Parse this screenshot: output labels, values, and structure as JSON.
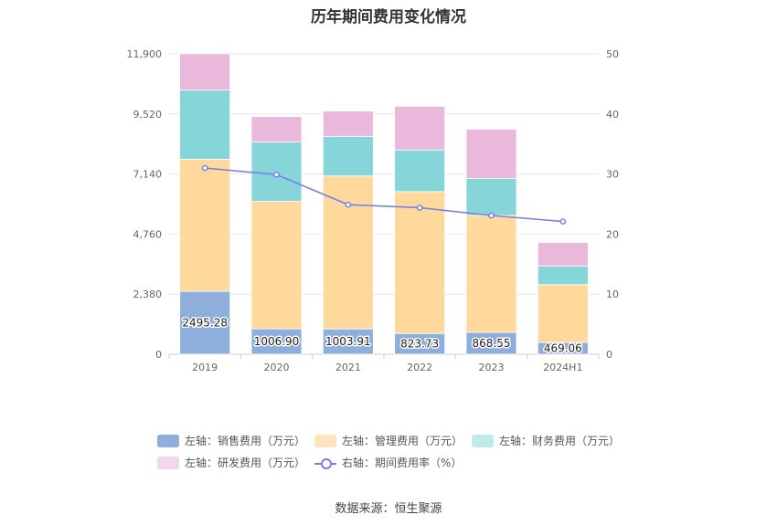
{
  "title": "历年期间费用变化情况",
  "source": "数据来源：恒生聚源",
  "colors": {
    "sales": "#8eaedb",
    "admin": "#ffd99c",
    "finance": "#85d5d9",
    "rd": "#e9b8da",
    "rate": "#7b7fe8",
    "legend_sales": "#8eaedb",
    "legend_admin": "#ffe4be",
    "legend_finance": "#bfeaec",
    "legend_rd": "#f4d6ea"
  },
  "legend": {
    "sales": "左轴：销售费用（万元）",
    "admin": "左轴：管理费用（万元）",
    "finance": "左轴：财务费用（万元）",
    "rd": "左轴：研发费用（万元）",
    "rate": "右轴：期间费用率（%）"
  },
  "chart_data": {
    "type": "bar",
    "stacked": true,
    "categories": [
      "2019",
      "2020",
      "2021",
      "2022",
      "2023",
      "2024H1"
    ],
    "series": [
      {
        "name": "左轴：销售费用（万元）",
        "key": "sales",
        "values": [
          2495.28,
          1006.9,
          1003.91,
          823.73,
          868.55,
          469.06
        ]
      },
      {
        "name": "左轴：管理费用（万元）",
        "key": "admin",
        "values": [
          5230,
          5050,
          6060,
          5620,
          4630,
          2290
        ]
      },
      {
        "name": "左轴：财务费用（万元）",
        "key": "finance",
        "values": [
          2740,
          2350,
          1570,
          1650,
          1460,
          740
        ]
      },
      {
        "name": "左轴：研发费用（万元）",
        "key": "rd",
        "values": [
          1440,
          1010,
          1000,
          1730,
          1960,
          930
        ]
      }
    ],
    "line": {
      "name": "右轴：期间费用率（%）",
      "values": [
        31.0,
        29.9,
        24.9,
        24.4,
        23.1,
        22.1
      ]
    },
    "data_labels": [
      "2495.28",
      "1006.90",
      "1003.91",
      "823.73",
      "868.55",
      "469.06"
    ],
    "y_left": {
      "min": 0,
      "max": 11900,
      "ticks": [
        "0",
        "2,380",
        "4,760",
        "7,140",
        "9,520",
        "11,900"
      ]
    },
    "y_right": {
      "min": 0,
      "max": 50,
      "ticks": [
        "0",
        "10",
        "20",
        "30",
        "40",
        "50"
      ]
    },
    "grid": true,
    "legend_position": "bottom"
  }
}
